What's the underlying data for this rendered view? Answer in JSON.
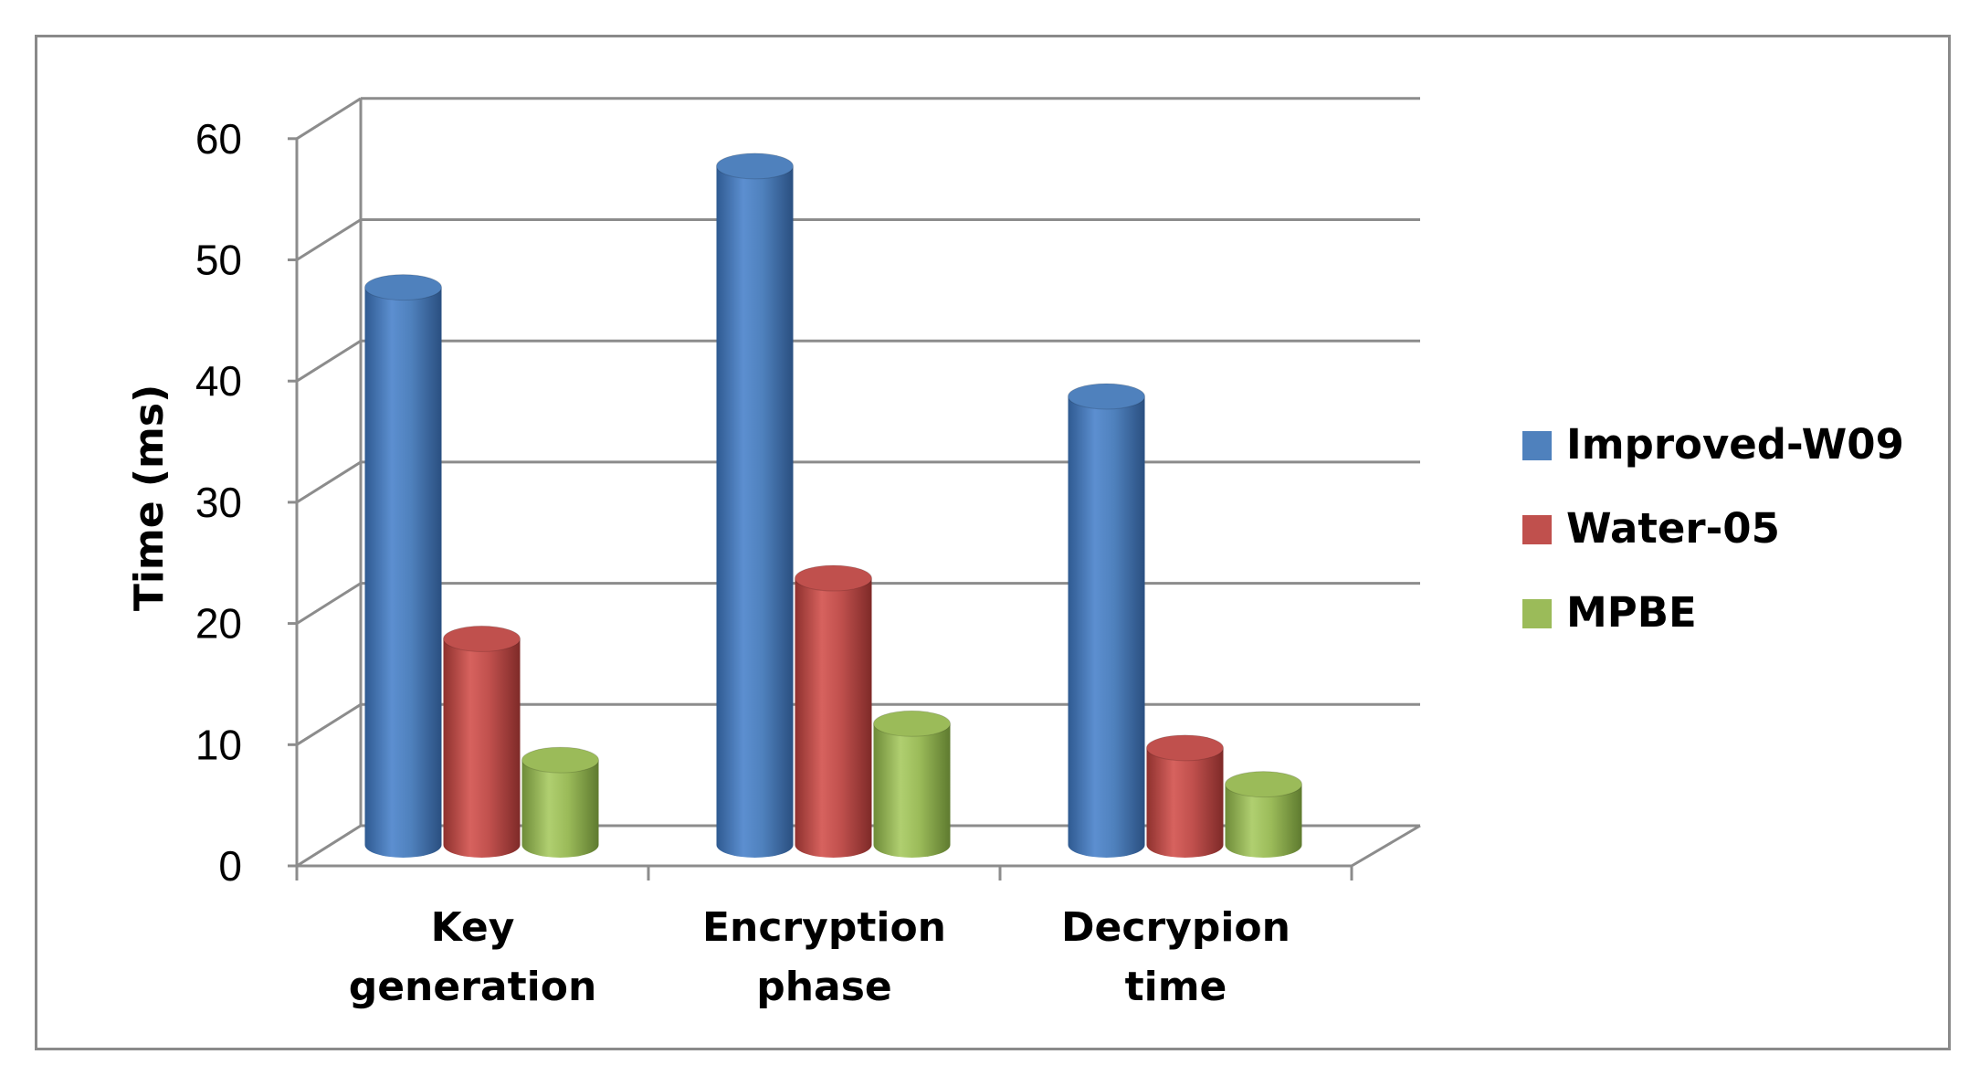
{
  "chart_data": {
    "type": "bar",
    "title": "",
    "xlabel": "",
    "ylabel": "Time (ms)",
    "ylim": [
      0,
      60
    ],
    "yticks": [
      0,
      10,
      20,
      30,
      40,
      50,
      60
    ],
    "categories": [
      {
        "line1": "Key",
        "line2": "generation"
      },
      {
        "line1": "Encryption",
        "line2": "phase"
      },
      {
        "line1": "Decrypion",
        "line2": "time"
      }
    ],
    "series": [
      {
        "name": "Improved-W09",
        "color": "#4f81bd",
        "values": [
          46,
          56,
          37
        ]
      },
      {
        "name": "Water-05",
        "color": "#c0504d",
        "values": [
          17,
          22,
          8
        ]
      },
      {
        "name": "MPBE",
        "color": "#9bbb59",
        "values": [
          7,
          10,
          5
        ]
      }
    ],
    "grid": true,
    "legend": "right",
    "style": "3d-cylinder"
  }
}
